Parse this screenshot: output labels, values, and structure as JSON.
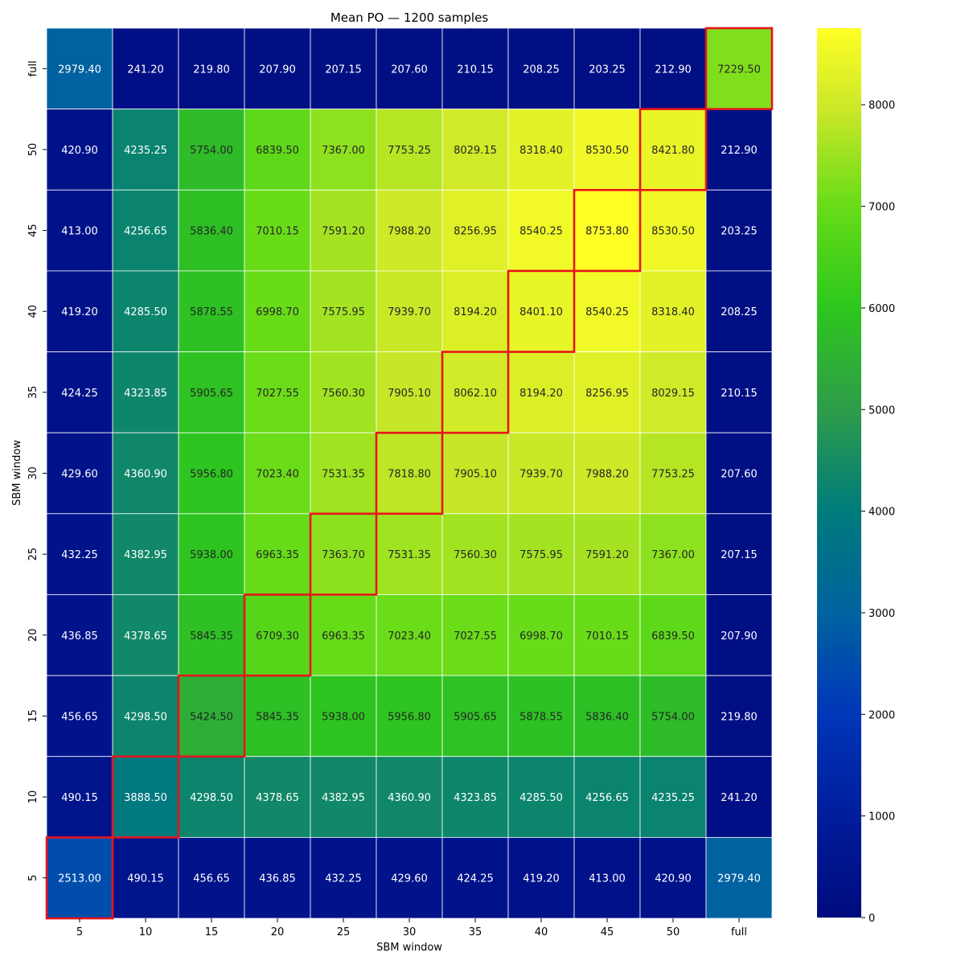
{
  "chart_data": {
    "type": "heatmap",
    "title": "Mean PO — 1200 samples",
    "xlabel": "SBM window",
    "ylabel": "SBM window",
    "x_categories": [
      "5",
      "10",
      "15",
      "20",
      "25",
      "30",
      "35",
      "40",
      "45",
      "50",
      "full"
    ],
    "y_categories_top_to_bottom": [
      "full",
      "50",
      "45",
      "40",
      "35",
      "30",
      "25",
      "20",
      "15",
      "10",
      "5"
    ],
    "values_top_to_bottom": [
      [
        "2979.40",
        "241.20",
        "219.80",
        "207.90",
        "207.15",
        "207.60",
        "210.15",
        "208.25",
        "203.25",
        "212.90",
        "7229.50"
      ],
      [
        "420.90",
        "4235.25",
        "5754.00",
        "6839.50",
        "7367.00",
        "7753.25",
        "8029.15",
        "8318.40",
        "8530.50",
        "8421.80",
        "212.90"
      ],
      [
        "413.00",
        "4256.65",
        "5836.40",
        "7010.15",
        "7591.20",
        "7988.20",
        "8256.95",
        "8540.25",
        "8753.80",
        "8530.50",
        "203.25"
      ],
      [
        "419.20",
        "4285.50",
        "5878.55",
        "6998.70",
        "7575.95",
        "7939.70",
        "8194.20",
        "8401.10",
        "8540.25",
        "8318.40",
        "208.25"
      ],
      [
        "424.25",
        "4323.85",
        "5905.65",
        "7027.55",
        "7560.30",
        "7905.10",
        "8062.10",
        "8194.20",
        "8256.95",
        "8029.15",
        "210.15"
      ],
      [
        "429.60",
        "4360.90",
        "5956.80",
        "7023.40",
        "7531.35",
        "7818.80",
        "7905.10",
        "7939.70",
        "7988.20",
        "7753.25",
        "207.60"
      ],
      [
        "432.25",
        "4382.95",
        "5938.00",
        "6963.35",
        "7363.70",
        "7531.35",
        "7560.30",
        "7575.95",
        "7591.20",
        "7367.00",
        "207.15"
      ],
      [
        "436.85",
        "4378.65",
        "5845.35",
        "6709.30",
        "6963.35",
        "7023.40",
        "7027.55",
        "6998.70",
        "7010.15",
        "6839.50",
        "207.90"
      ],
      [
        "456.65",
        "4298.50",
        "5424.50",
        "5845.35",
        "5938.00",
        "5956.80",
        "5905.65",
        "5878.55",
        "5836.40",
        "5754.00",
        "219.80"
      ],
      [
        "490.15",
        "3888.50",
        "4298.50",
        "4378.65",
        "4382.95",
        "4360.90",
        "4323.85",
        "4285.50",
        "4256.65",
        "4235.25",
        "241.20"
      ],
      [
        "2513.00",
        "490.15",
        "456.65",
        "436.85",
        "432.25",
        "429.60",
        "424.25",
        "419.20",
        "413.00",
        "420.90",
        "2979.40"
      ]
    ],
    "highlighted_cells": "diagonal (row category = column category), outlined in red",
    "highlight_color": "#e8141c",
    "colormap": "gist_earth-like (dark navy → blue → teal → green → yellow)",
    "colorbar_range": [
      0,
      8753.8
    ],
    "colorbar_ticks": [
      "0",
      "1000",
      "2000",
      "3000",
      "4000",
      "5000",
      "6000",
      "7000",
      "8000"
    ],
    "grid": "white cell separators",
    "legend": "colorbar on the right"
  }
}
